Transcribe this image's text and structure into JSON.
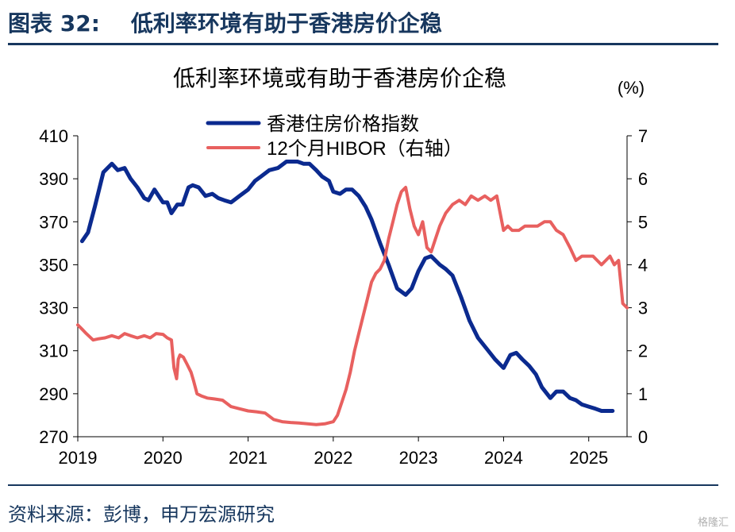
{
  "header": {
    "figure_label": "图表 32:",
    "figure_title": "低利率环境有助于香港房价企稳"
  },
  "footer": {
    "source": "资料来源：彭博，申万宏源研究",
    "watermark": "格隆汇"
  },
  "chart_data": {
    "type": "line",
    "title": "低利率环境或有助于香港房价企稳",
    "y2_unit": "(%)",
    "x_ticks": [
      "2019",
      "2020",
      "2021",
      "2022",
      "2023",
      "2024",
      "2025"
    ],
    "xlim": [
      2019.0,
      2025.45
    ],
    "ylim_left": [
      270,
      410
    ],
    "yticks_left": [
      "410",
      "390",
      "370",
      "350",
      "330",
      "310",
      "290",
      "270"
    ],
    "ylim_right": [
      0,
      7
    ],
    "yticks_right": [
      "7",
      "6",
      "5",
      "4",
      "3",
      "2",
      "1",
      "0"
    ],
    "legend_position": "top-center",
    "series": [
      {
        "name": "香港住房价格指数",
        "axis": "left",
        "color": "#0b2a8f",
        "x": [
          2019.05,
          2019.12,
          2019.2,
          2019.3,
          2019.4,
          2019.47,
          2019.55,
          2019.62,
          2019.7,
          2019.78,
          2019.83,
          2019.9,
          2019.95,
          2020.0,
          2020.05,
          2020.1,
          2020.17,
          2020.23,
          2020.3,
          2020.35,
          2020.42,
          2020.5,
          2020.58,
          2020.65,
          2020.72,
          2020.8,
          2020.9,
          2021.0,
          2021.08,
          2021.15,
          2021.25,
          2021.35,
          2021.45,
          2021.52,
          2021.58,
          2021.65,
          2021.72,
          2021.8,
          2021.87,
          2021.95,
          2022.0,
          2022.08,
          2022.15,
          2022.22,
          2022.3,
          2022.38,
          2022.45,
          2022.55,
          2022.65,
          2022.75,
          2022.85,
          2022.92,
          2023.0,
          2023.08,
          2023.15,
          2023.25,
          2023.32,
          2023.4,
          2023.5,
          2023.6,
          2023.7,
          2023.8,
          2023.9,
          2024.0,
          2024.08,
          2024.15,
          2024.22,
          2024.3,
          2024.38,
          2024.45,
          2024.55,
          2024.62,
          2024.7,
          2024.78,
          2024.85,
          2024.92,
          2025.0,
          2025.08,
          2025.15,
          2025.22,
          2025.28
        ],
        "values": [
          361,
          365,
          377,
          393,
          397,
          394,
          395,
          390,
          386,
          381,
          380,
          385,
          382,
          379,
          379,
          374,
          378,
          378,
          386,
          387,
          386,
          382,
          383,
          381,
          380,
          379,
          382,
          385,
          389,
          391,
          394,
          395,
          398,
          398,
          398,
          397,
          397,
          394,
          391,
          389,
          384,
          383,
          385,
          385,
          382,
          377,
          371,
          360,
          350,
          339,
          336,
          339,
          347,
          353,
          354,
          350,
          348,
          345,
          335,
          324,
          316,
          311,
          306,
          302,
          308,
          309,
          306,
          303,
          299,
          293,
          288,
          291,
          291,
          288,
          287,
          285,
          284,
          283,
          282,
          282,
          282
        ]
      },
      {
        "name": "12个月HIBOR（右轴）",
        "axis": "right",
        "color": "#e8605f",
        "x": [
          2019.0,
          2019.05,
          2019.1,
          2019.18,
          2019.25,
          2019.32,
          2019.4,
          2019.48,
          2019.55,
          2019.62,
          2019.7,
          2019.78,
          2019.85,
          2019.92,
          2020.0,
          2020.05,
          2020.1,
          2020.13,
          2020.16,
          2020.18,
          2020.2,
          2020.24,
          2020.28,
          2020.33,
          2020.36,
          2020.4,
          2020.45,
          2020.52,
          2020.6,
          2020.7,
          2020.8,
          2020.9,
          2021.0,
          2021.1,
          2021.2,
          2021.3,
          2021.4,
          2021.5,
          2021.6,
          2021.7,
          2021.8,
          2021.9,
          2022.0,
          2022.05,
          2022.1,
          2022.15,
          2022.2,
          2022.25,
          2022.3,
          2022.35,
          2022.4,
          2022.45,
          2022.5,
          2022.55,
          2022.6,
          2022.65,
          2022.7,
          2022.75,
          2022.8,
          2022.85,
          2022.9,
          2022.95,
          2023.0,
          2023.05,
          2023.1,
          2023.15,
          2023.2,
          2023.25,
          2023.32,
          2023.4,
          2023.48,
          2023.55,
          2023.62,
          2023.7,
          2023.78,
          2023.85,
          2023.92,
          2024.0,
          2024.05,
          2024.1,
          2024.18,
          2024.25,
          2024.32,
          2024.4,
          2024.48,
          2024.55,
          2024.62,
          2024.7,
          2024.78,
          2024.85,
          2024.92,
          2025.0,
          2025.05,
          2025.1,
          2025.15,
          2025.2,
          2025.25,
          2025.3,
          2025.35,
          2025.4,
          2025.45
        ],
        "values": [
          2.6,
          2.5,
          2.4,
          2.25,
          2.28,
          2.3,
          2.35,
          2.3,
          2.4,
          2.35,
          2.3,
          2.35,
          2.3,
          2.4,
          2.38,
          2.3,
          2.25,
          1.6,
          1.35,
          1.8,
          1.9,
          1.85,
          1.7,
          1.5,
          1.3,
          1.0,
          0.95,
          0.9,
          0.88,
          0.85,
          0.7,
          0.65,
          0.6,
          0.58,
          0.55,
          0.4,
          0.35,
          0.33,
          0.32,
          0.3,
          0.28,
          0.3,
          0.35,
          0.5,
          0.8,
          1.1,
          1.5,
          2.0,
          2.4,
          2.8,
          3.2,
          3.6,
          3.8,
          3.9,
          4.1,
          4.6,
          5.0,
          5.4,
          5.7,
          5.8,
          5.3,
          4.9,
          4.7,
          5.0,
          4.4,
          4.3,
          4.6,
          4.9,
          5.2,
          5.4,
          5.5,
          5.4,
          5.6,
          5.5,
          5.6,
          5.5,
          5.6,
          4.8,
          4.9,
          4.8,
          4.8,
          4.9,
          4.9,
          4.9,
          5.0,
          5.0,
          4.8,
          4.7,
          4.4,
          4.1,
          4.2,
          4.2,
          4.2,
          4.1,
          4.0,
          4.1,
          4.2,
          4.0,
          4.1,
          3.1,
          3.0
        ]
      }
    ]
  }
}
